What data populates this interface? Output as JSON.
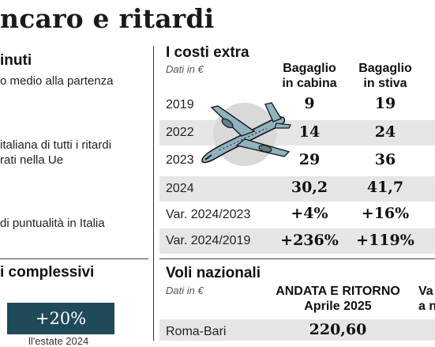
{
  "headline": "ncaro e ritardi",
  "left_panel": {
    "section_title": "inuti",
    "line1": "o medio alla partenza",
    "line2a": " italiana di tutti i ritardi",
    "line2b": "rati nella Ue",
    "line3": " di puntualità in Italia",
    "section2_title": "i complessivi",
    "box_value": "+20%",
    "cut_caption": "ll'estate 2024"
  },
  "extra_costs": {
    "title": "I costi extra",
    "note": "Dati in €",
    "col1_header_a": "Bagaglio",
    "col1_header_b": "in cabina",
    "col2_header_a": "Bagaglio",
    "col2_header_b": "in stiva",
    "rows": [
      {
        "label": "2019",
        "cabin": "9",
        "hold": "19"
      },
      {
        "label": "2022",
        "cabin": "14",
        "hold": "24"
      },
      {
        "label": "2023",
        "cabin": "29",
        "hold": "36"
      },
      {
        "label": "2024",
        "cabin": "30,2",
        "hold": "41,7"
      },
      {
        "label": "Var. 2024/2023",
        "cabin": "+4%",
        "hold": "+16%"
      },
      {
        "label": "Var. 2024/2019",
        "cabin": "+236%",
        "hold": "+119%"
      }
    ]
  },
  "domestic_flights": {
    "title": "Voli nazionali",
    "note": "Dati in €",
    "col1_header_a": "ANDATA E RITORNO",
    "col1_header_b": "Aprile 2025",
    "col2_header_a": "Va",
    "col2_header_b": "a n",
    "rows": [
      {
        "label": "Roma-Bari",
        "value": "220,60"
      }
    ]
  },
  "colors": {
    "row_shade": "#e6e6e6",
    "box_dark": "#1f4a5a",
    "plane_body": "#8fb3bf",
    "plane_circle": "#d9d9d9"
  }
}
